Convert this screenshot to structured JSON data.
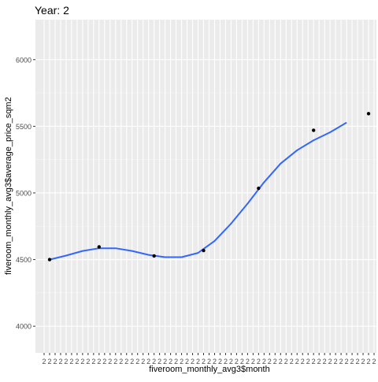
{
  "chart_data": {
    "type": "scatter",
    "title": "Year: 2",
    "xlabel": "fiveroom_monthly_avg3$month",
    "ylabel": "fiveroom_monthly_avg3$average_price_sqm2",
    "y_ticks": [
      4000,
      4500,
      5000,
      5500,
      6000
    ],
    "y_tick_labels": [
      "4000",
      "4500",
      "5000",
      "5500",
      "6000"
    ],
    "ylim": [
      3800,
      6300
    ],
    "x_range": [
      1,
      61
    ],
    "x_tick_count": 61,
    "x_tick_label_text": "2",
    "grid": true,
    "point_color": "#000000",
    "smooth_color": "#3366ff",
    "panel_background": "#ebebeb",
    "points": [
      {
        "x": 2,
        "y": 4500
      },
      {
        "x": 11,
        "y": 4595
      },
      {
        "x": 21,
        "y": 4527
      },
      {
        "x": 30,
        "y": 4568
      },
      {
        "x": 40,
        "y": 5035
      },
      {
        "x": 50,
        "y": 5470
      },
      {
        "x": 60,
        "y": 5595
      }
    ],
    "smooth_line": [
      {
        "x": 2,
        "y": 4500
      },
      {
        "x": 5,
        "y": 4530
      },
      {
        "x": 8,
        "y": 4565
      },
      {
        "x": 11,
        "y": 4585
      },
      {
        "x": 14,
        "y": 4585
      },
      {
        "x": 17,
        "y": 4565
      },
      {
        "x": 20,
        "y": 4535
      },
      {
        "x": 23,
        "y": 4518
      },
      {
        "x": 26,
        "y": 4518
      },
      {
        "x": 29,
        "y": 4550
      },
      {
        "x": 32,
        "y": 4640
      },
      {
        "x": 35,
        "y": 4770
      },
      {
        "x": 38,
        "y": 4920
      },
      {
        "x": 41,
        "y": 5080
      },
      {
        "x": 44,
        "y": 5220
      },
      {
        "x": 47,
        "y": 5320
      },
      {
        "x": 50,
        "y": 5395
      },
      {
        "x": 53,
        "y": 5455
      },
      {
        "x": 56,
        "y": 5528
      }
    ]
  }
}
